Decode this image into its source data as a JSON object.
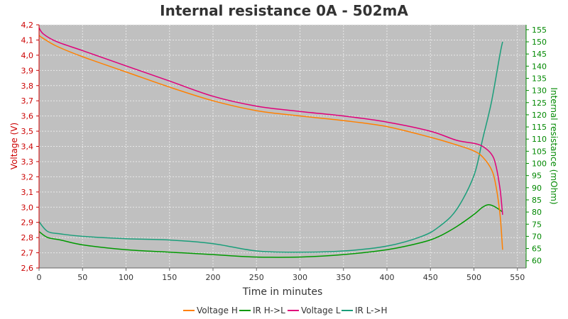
{
  "chart_data": {
    "type": "line",
    "title": "Internal resistance  0A - 502mA",
    "xlabel": "Time in minutes",
    "ylabel_left": "Voltage (V)",
    "ylabel_right": "Internal resistance (mOhm)",
    "xlim": [
      0,
      560
    ],
    "ylim_left": [
      2.6,
      4.2
    ],
    "ylim_right": [
      57,
      157
    ],
    "x_ticks": [
      0,
      50,
      100,
      150,
      200,
      250,
      300,
      350,
      400,
      450,
      500,
      550
    ],
    "y_left_ticks": [
      "2,6",
      "2,7",
      "2,8",
      "2,9",
      "3,0",
      "3,1",
      "3,2",
      "3,3",
      "3,4",
      "3,5",
      "3,6",
      "3,7",
      "3,8",
      "3,9",
      "4,0",
      "4,1",
      "4,2"
    ],
    "y_right_ticks": [
      60,
      65,
      70,
      75,
      80,
      85,
      90,
      95,
      100,
      105,
      110,
      115,
      120,
      125,
      130,
      135,
      140,
      145,
      150,
      155
    ],
    "grid": true,
    "legend_position": "bottom",
    "colors": {
      "plot_background": "#c0c0c0",
      "grid": "#e8e8e8",
      "left_axis": "#cc0000",
      "right_axis": "#008800"
    },
    "series": [
      {
        "name": "Voltage H",
        "axis": "left",
        "color": "#ff8000",
        "x": [
          0,
          5,
          20,
          50,
          100,
          150,
          200,
          250,
          300,
          350,
          400,
          450,
          480,
          500,
          510,
          520,
          525,
          530,
          533
        ],
        "y": [
          4.13,
          4.11,
          4.06,
          3.99,
          3.89,
          3.79,
          3.7,
          3.635,
          3.6,
          3.57,
          3.53,
          3.46,
          3.41,
          3.37,
          3.33,
          3.25,
          3.15,
          2.95,
          2.72
        ]
      },
      {
        "name": "IR H->L",
        "axis": "right",
        "color": "#009900",
        "x": [
          0,
          10,
          25,
          50,
          100,
          150,
          200,
          250,
          300,
          350,
          400,
          440,
          460,
          480,
          500,
          510,
          517,
          525,
          533
        ],
        "y": [
          72,
          69.5,
          68.5,
          66.5,
          64.5,
          63.5,
          62.5,
          61.5,
          61.5,
          62.5,
          64.5,
          67.5,
          70,
          74,
          79,
          82,
          83,
          82,
          80
        ]
      },
      {
        "name": "Voltage L",
        "axis": "left",
        "color": "#e0007a",
        "x": [
          0,
          5,
          20,
          50,
          100,
          150,
          200,
          250,
          300,
          350,
          400,
          450,
          480,
          500,
          510,
          520,
          525,
          530,
          533
        ],
        "y": [
          4.18,
          4.14,
          4.09,
          4.03,
          3.93,
          3.83,
          3.73,
          3.665,
          3.63,
          3.6,
          3.56,
          3.5,
          3.44,
          3.42,
          3.4,
          3.35,
          3.28,
          3.12,
          2.95
        ]
      },
      {
        "name": "IR L->H",
        "axis": "right",
        "color": "#1a9e7a",
        "x": [
          0,
          10,
          25,
          50,
          100,
          150,
          200,
          250,
          300,
          350,
          400,
          440,
          460,
          480,
          500,
          510,
          520,
          530,
          533
        ],
        "y": [
          76,
          72,
          71,
          70,
          69,
          68.5,
          67,
          64,
          63.5,
          64,
          66,
          70,
          74,
          81,
          95,
          110,
          125,
          145,
          150
        ]
      }
    ]
  }
}
